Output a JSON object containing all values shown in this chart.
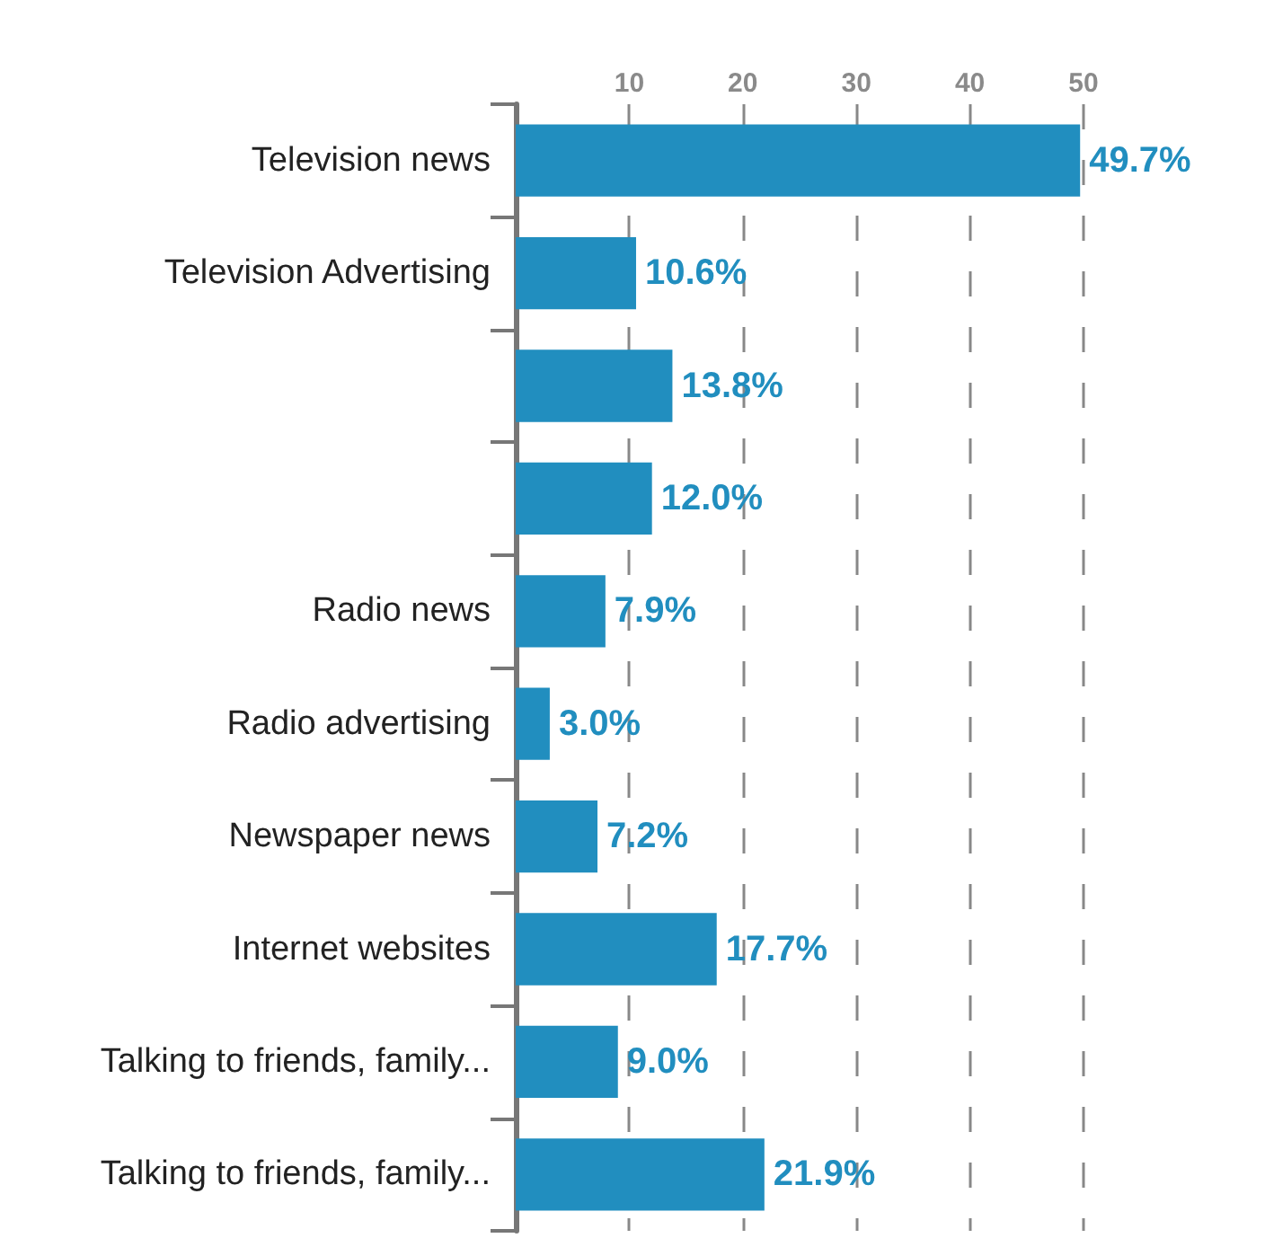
{
  "chart_data": {
    "type": "bar",
    "orientation": "horizontal",
    "categories": [
      "Television news",
      "Television Advertising",
      null,
      null,
      "Radio news",
      "Radio advertising",
      "Newspaper news",
      "Internet websites",
      "Talking to friends, family...",
      "Talking to friends, family..."
    ],
    "values": [
      49.7,
      10.6,
      13.8,
      12.0,
      7.9,
      3.0,
      7.2,
      17.7,
      9.0,
      21.9
    ],
    "value_labels": [
      "49.7%",
      "10.6%",
      "13.8%",
      "12.0%",
      "7.9%",
      "3.0%",
      "7.2%",
      "17.7%",
      "9.0%",
      "21.9%"
    ],
    "color": "#218ebf",
    "xlim": [
      0,
      50
    ],
    "xticks": [
      10,
      20,
      30,
      40,
      50
    ],
    "grid": "x"
  }
}
